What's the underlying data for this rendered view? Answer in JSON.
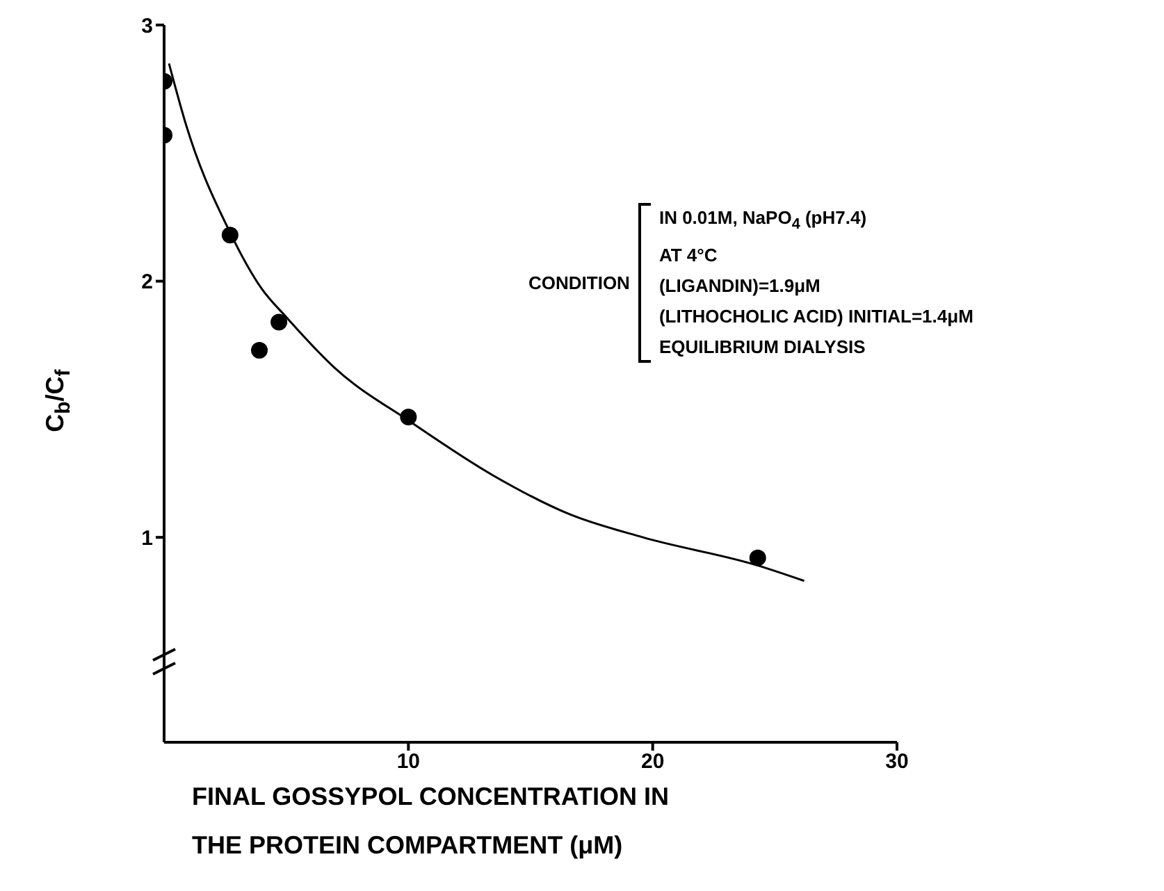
{
  "chart_data": {
    "type": "scatter",
    "xlabel": "FINAL GOSSYPOL CONCENTRATION IN THE PROTEIN COMPARTMENT (μM)",
    "ylabel": "C$_{b}$/C$_{f}$",
    "xlim": [
      0,
      30
    ],
    "xticks": [
      10,
      20,
      30
    ],
    "ylim": [
      0.2,
      3
    ],
    "yticks": [
      1,
      2,
      3
    ],
    "series": [
      {
        "color": "#000000",
        "marker": "circle",
        "x": [
          0,
          0,
          2.7,
          3.9,
          4.7,
          10,
          24.3
        ],
        "values": [
          2.78,
          2.57,
          2.18,
          1.73,
          1.84,
          1.47,
          0.92
        ]
      },
      {
        "type": "line",
        "color": "#000000",
        "marker": "none",
        "x": [
          0.2,
          0.9,
          2.7,
          4,
          5,
          7,
          10.1,
          13.5,
          16.6,
          19.6,
          24.3,
          26.2
        ],
        "values": [
          2.85,
          2.61,
          2.19,
          1.97,
          1.86,
          1.66,
          1.45,
          1.24,
          1.09,
          1,
          0.89,
          0.83
        ]
      }
    ],
    "annotations": [
      "CONDITION",
      "IN 0.01M, NaPO$_{4}$ (pH7.4)",
      "AT 4°C",
      "(LIGANDIN)=1.9μM",
      "(LITHOCHOLIC ACID) INITIAL=1.4μM",
      "EQUILIBRIUM DIALYSIS"
    ]
  }
}
